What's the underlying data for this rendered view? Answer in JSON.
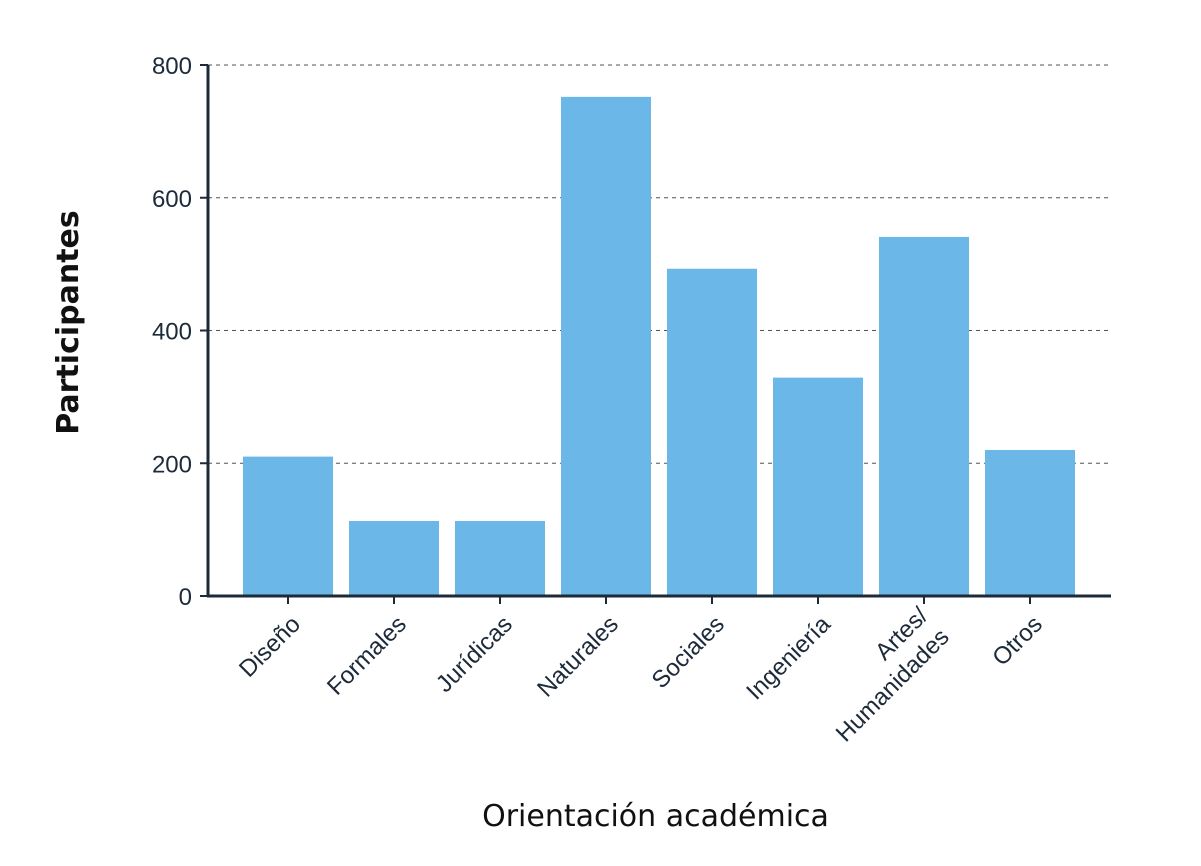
{
  "chart_data": {
    "type": "bar",
    "title": "",
    "xlabel": "Orientación académica",
    "ylabel": "Participantes",
    "categories": [
      "Diseño",
      "Formales",
      "Jurídicas",
      "Naturales",
      "Sociales",
      "Ingeniería",
      "Artes/\nHumanidades",
      "Otros"
    ],
    "values": [
      210,
      113,
      113,
      752,
      493,
      329,
      541,
      220
    ],
    "ylim": [
      0,
      800
    ],
    "yticks": [
      "0",
      "200",
      "400",
      "600",
      "800"
    ],
    "grid": "horizontal dashed",
    "legend": "none",
    "bar_color": "#6bb8e8"
  }
}
